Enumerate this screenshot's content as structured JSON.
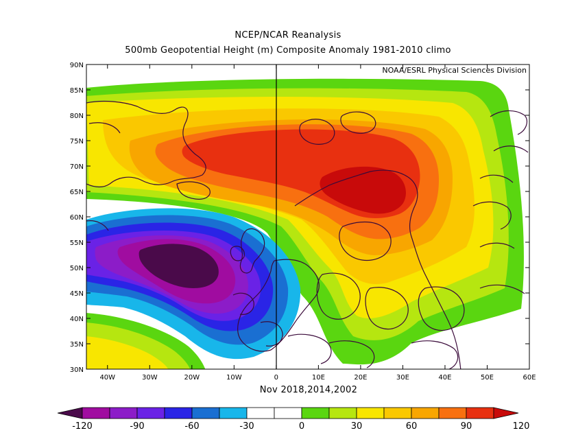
{
  "header": {
    "title": "NCEP/NCAR Reanalysis",
    "subtitle": "500mb Geopotential Height (m) Composite Anomaly 1981-2010 climo"
  },
  "map": {
    "credit": "NOAA/ESRL Physical Sciences Division",
    "lat_labels": [
      "90N",
      "85N",
      "80N",
      "75N",
      "70N",
      "65N",
      "60N",
      "55N",
      "50N",
      "45N",
      "40N",
      "35N",
      "30N"
    ],
    "lon_labels": [
      "40W",
      "30W",
      "20W",
      "10W",
      "0",
      "10E",
      "20E",
      "30E",
      "40E",
      "50E",
      "60E"
    ],
    "lon_range": [
      -45,
      60
    ],
    "lat_range": [
      30,
      90
    ],
    "composite_label": "Nov 2018,2014,2002"
  },
  "colorbar": {
    "tick_labels": [
      "-120",
      "-90",
      "-60",
      "-30",
      "0",
      "30",
      "60",
      "90",
      "120"
    ],
    "colors": [
      "#4a0a4a",
      "#a00ca0",
      "#8c1cc8",
      "#6a22e6",
      "#2a24e6",
      "#1a6fd2",
      "#18b6ea",
      "#ffffff",
      "#ffffff",
      "#5ad610",
      "#b6e610",
      "#f8e600",
      "#fac800",
      "#f8a600",
      "#f87010",
      "#e83010",
      "#c80a0a"
    ]
  }
}
